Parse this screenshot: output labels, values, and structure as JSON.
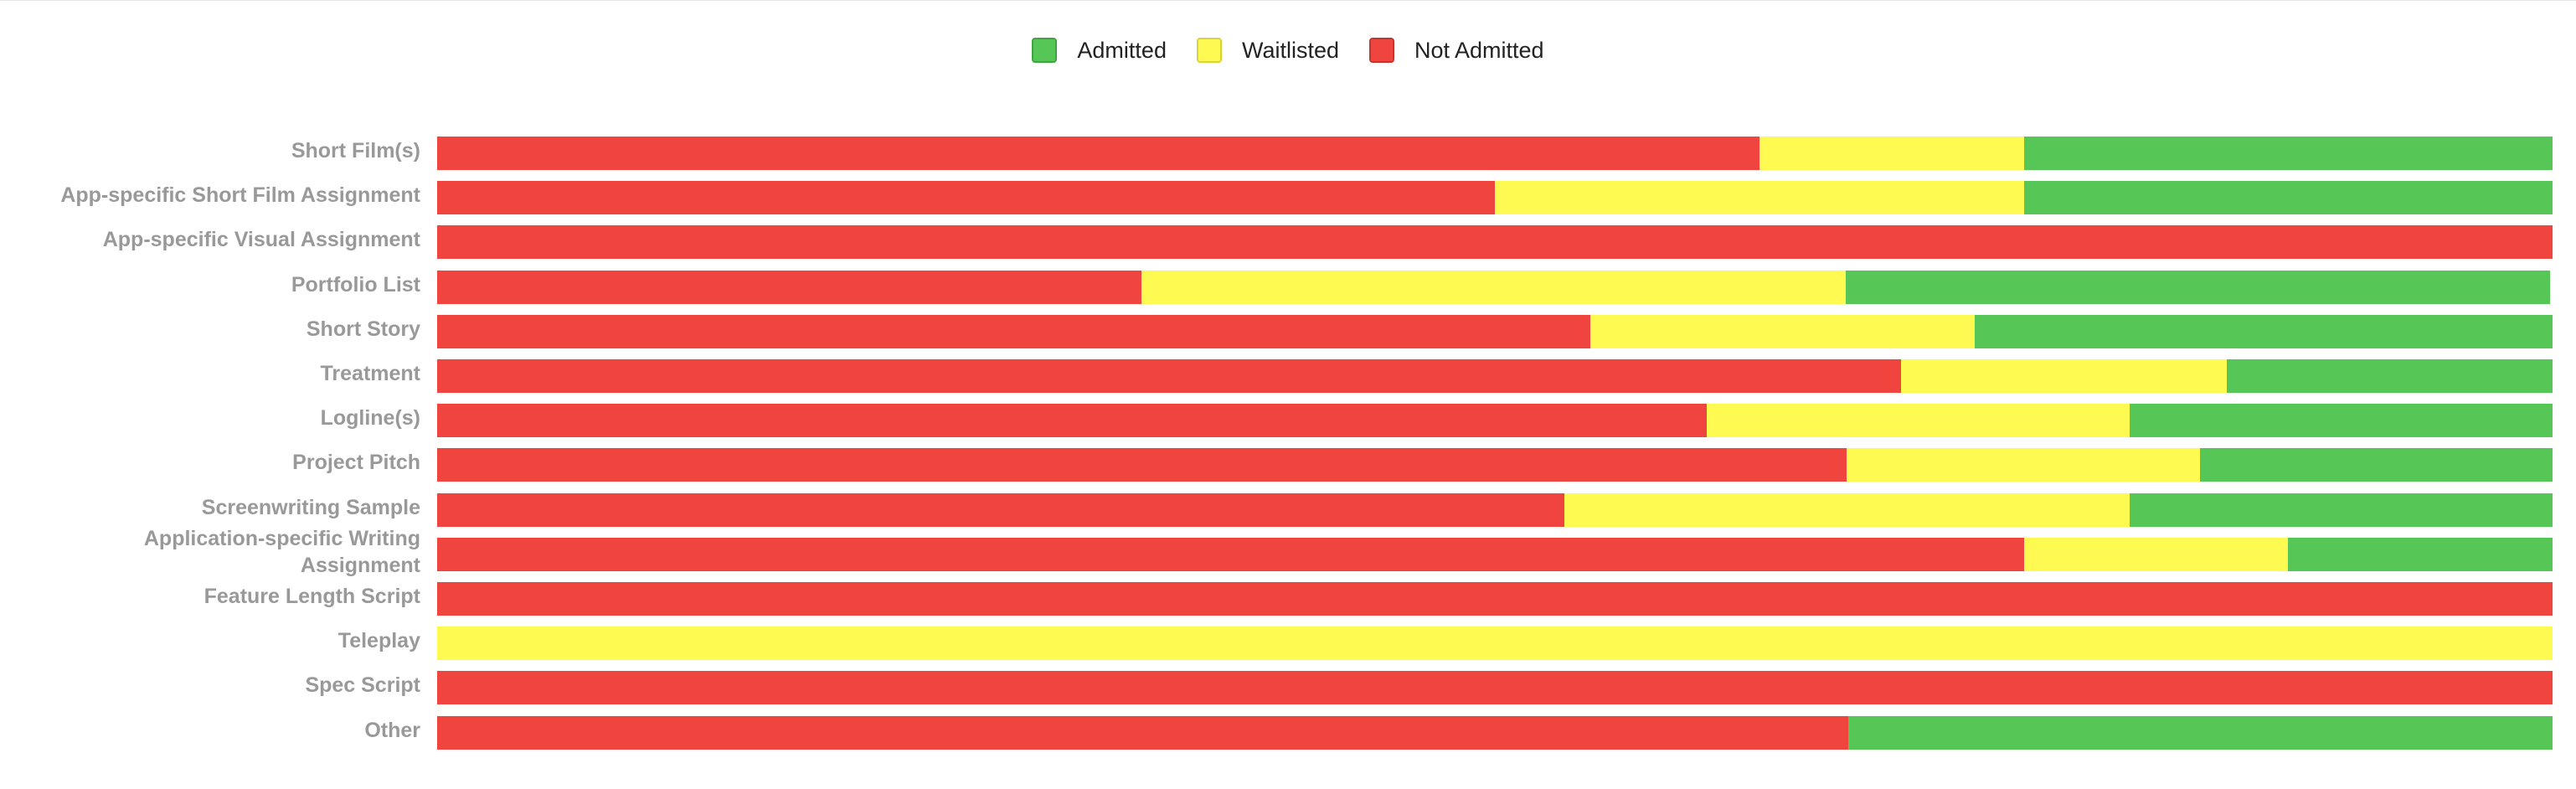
{
  "legend": {
    "items": [
      {
        "label": "Admitted",
        "color": "#56c757",
        "border": "#3fa441"
      },
      {
        "label": "Waitlisted",
        "color": "#fefa52",
        "border": "#d9d23a"
      },
      {
        "label": "Not Admitted",
        "color": "#f0453f",
        "border": "#c53530"
      }
    ]
  },
  "chart_data": {
    "type": "bar",
    "orientation": "horizontal",
    "stacked": true,
    "normalized_percent": true,
    "title": "",
    "xlabel": "",
    "ylabel": "",
    "grid": false,
    "legend_position": "top",
    "categories": [
      "Short Film(s)",
      "App-specific Short Film Assignment",
      "App-specific Visual Assignment",
      "Portfolio List",
      "Short Story",
      "Treatment",
      "Logline(s)",
      "Project Pitch",
      "Screenwriting Sample",
      "Application-specific Writing Assignment",
      "Feature Length Script",
      "Teleplay",
      "Spec Script",
      "Other"
    ],
    "series": [
      {
        "name": "Not Admitted",
        "color": "#f0453f",
        "values": [
          62.5,
          50.0,
          100.0,
          33.3,
          54.5,
          69.2,
          60.0,
          66.7,
          53.3,
          75.0,
          100.0,
          0.0,
          100.0,
          66.7
        ]
      },
      {
        "name": "Waitlisted",
        "color": "#fefa52",
        "values": [
          12.5,
          25.0,
          0.0,
          33.3,
          18.2,
          15.4,
          20.0,
          16.7,
          26.7,
          12.5,
          0.0,
          100.0,
          0.0,
          0.0
        ]
      },
      {
        "name": "Admitted",
        "color": "#56c757",
        "values": [
          25.0,
          25.0,
          0.0,
          33.3,
          27.3,
          15.4,
          20.0,
          16.7,
          20.0,
          12.5,
          0.0,
          0.0,
          0.0,
          33.3
        ]
      }
    ],
    "xlim": [
      0,
      100
    ]
  }
}
